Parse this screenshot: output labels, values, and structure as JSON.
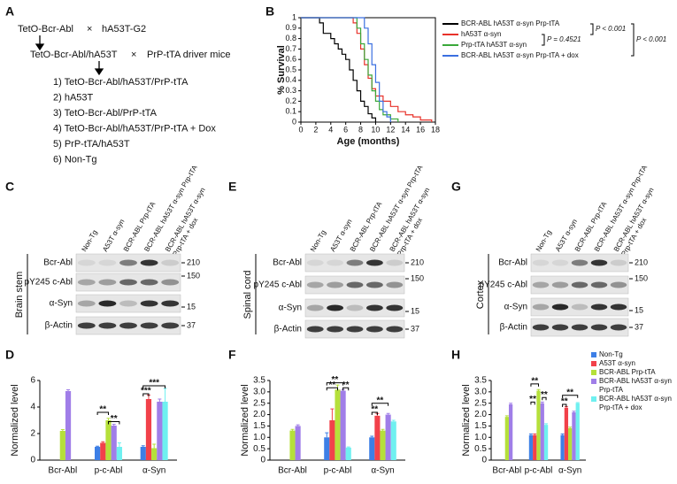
{
  "panel_labels": [
    "A",
    "B",
    "C",
    "D",
    "E",
    "F",
    "G",
    "H"
  ],
  "panel_a": {
    "parent1": "TetO-Bcr-Abl",
    "cross1": "×",
    "parent2": "hA53T-G2",
    "offspring": "TetO-Bcr-Abl/hA53T",
    "cross2": "×",
    "parent3": "PrP-tTA driver mice",
    "groups": [
      "1) TetO-Bcr-Abl/hA53T/PrP-tTA",
      "2) hA53T",
      "3) TetO-Bcr-Abl/PrP-tTA",
      "4) TetO-Bcr-Abl/hA53T/PrP-tTA + Dox",
      "5) PrP-tTA/hA53T",
      "6) Non-Tg"
    ]
  },
  "blots": [
    {
      "tissue": "Brain stem",
      "lanes": [
        [
          "Non-Tg"
        ],
        [
          "A53T α-syn"
        ],
        [
          "BCR-ABL Prp-tTA"
        ],
        [
          "BCR-ABL hA53T α-syn Prp-tTA"
        ],
        [
          "BCR-ABL hA53T α-syn",
          "Prp-tTA + dox"
        ]
      ],
      "rows": [
        "Bcr-Abl",
        "pY245 c-Abl",
        "α-Syn",
        "β-Actin"
      ],
      "markers": [
        210,
        150,
        15,
        37
      ]
    },
    {
      "tissue": "Spinal cord",
      "lanes": [
        [
          "Non-Tg"
        ],
        [
          "A53T α-syn"
        ],
        [
          "BCR-ABL Prp-tTA"
        ],
        [
          "BCR-ABL hA53T α-syn Prp-tTA"
        ],
        [
          "BCR-ABL hA53T α-syn",
          "Prp-tTA + dox"
        ]
      ],
      "rows": [
        "Bcr-Abl",
        "pY245 c-Abl",
        "α-Syn",
        "β-Actin"
      ],
      "markers": [
        210,
        150,
        15,
        37
      ]
    },
    {
      "tissue": "Cortex",
      "lanes": [
        [
          "Non-Tg"
        ],
        [
          "A53T α-syn"
        ],
        [
          "BCR-ABL Prp-tTA"
        ],
        [
          "BCR-ABL hA53T α-syn Prp-tTA"
        ],
        [
          "BCR-ABL hA53T α-syn",
          "Prp-tTA + dox"
        ]
      ],
      "rows": [
        "Bcr-Abl",
        "pY245 c-Abl",
        "α-Syn",
        "β-Actin"
      ],
      "markers": [
        210,
        150,
        15,
        37
      ]
    }
  ],
  "chart_data": [
    {
      "type": "line",
      "step": true,
      "ylabel": "% Survival",
      "xlabel": "Age (months)",
      "xlim": [
        0,
        18
      ],
      "ylim": [
        0,
        1
      ],
      "xticks": [
        0,
        2,
        4,
        6,
        8,
        10,
        12,
        14,
        16,
        18
      ],
      "yticks": [
        0,
        0.1,
        0.2,
        0.3,
        0.4,
        0.5,
        0.6,
        0.7,
        0.8,
        0.9,
        1
      ],
      "series": [
        {
          "name": "BCR-ABL hA53T α-syn Prp-tTA",
          "color": "#000000",
          "x": [
            0,
            2.5,
            3,
            4,
            4.5,
            5,
            5.5,
            6,
            6.5,
            7,
            7.5,
            8,
            8.5,
            9,
            9.5,
            10
          ],
          "values": [
            1,
            0.95,
            0.85,
            0.8,
            0.75,
            0.7,
            0.65,
            0.6,
            0.5,
            0.4,
            0.3,
            0.2,
            0.15,
            0.08,
            0.04,
            0
          ]
        },
        {
          "name": "hA53T α-syn",
          "color": "#e8322a",
          "x": [
            0,
            7,
            7.5,
            8,
            8.5,
            9,
            9.5,
            10,
            11,
            12,
            13,
            14,
            15,
            16,
            17.5
          ],
          "values": [
            1,
            0.95,
            0.85,
            0.7,
            0.55,
            0.42,
            0.32,
            0.25,
            0.2,
            0.15,
            0.1,
            0.07,
            0.05,
            0.02,
            0
          ]
        },
        {
          "name": "Prp-tTA hA53T α-syn",
          "color": "#3aa83a",
          "x": [
            0,
            7.5,
            8,
            8.5,
            9,
            9.5,
            10,
            10.5,
            11,
            12,
            13
          ],
          "values": [
            1,
            0.9,
            0.75,
            0.6,
            0.45,
            0.3,
            0.2,
            0.12,
            0.07,
            0.03,
            0
          ]
        },
        {
          "name": "BCR-ABL hA53T α-syn Prp-tTA + dox",
          "color": "#3a6fe0",
          "x": [
            0,
            8.5,
            9,
            9.5,
            10,
            10.5,
            11,
            11.5,
            12
          ],
          "values": [
            1,
            0.9,
            0.75,
            0.55,
            0.38,
            0.2,
            0.1,
            0.05,
            0
          ]
        }
      ],
      "p_values": [
        "P < 0.001",
        "P = 0.4521",
        "P < 0.001"
      ]
    },
    {
      "type": "bar",
      "ylabel": "Normalized level",
      "categories": [
        "Bcr-Abl",
        "p-c-Abl",
        "α-Syn"
      ],
      "ylim": [
        0,
        6
      ],
      "yticks": [
        0,
        2,
        4,
        6
      ],
      "series": [
        {
          "color": "#3d7fe6",
          "values": [
            null,
            1.0,
            1.0
          ],
          "errors": [
            null,
            0.05,
            0.08
          ]
        },
        {
          "color": "#f2414a",
          "values": [
            null,
            1.3,
            4.6
          ],
          "errors": [
            null,
            0.08,
            0.3
          ]
        },
        {
          "color": "#b5e03a",
          "values": [
            2.2,
            3.0,
            0.9
          ],
          "errors": [
            0.1,
            0.15,
            0.3
          ]
        },
        {
          "color": "#a07ee8",
          "values": [
            5.2,
            2.6,
            4.4
          ],
          "errors": [
            0.1,
            0.1,
            0.2
          ]
        },
        {
          "color": "#6ff0f0",
          "values": [
            null,
            1.0,
            4.4
          ],
          "errors": [
            null,
            0.3,
            1.0
          ]
        }
      ],
      "annotations": [
        "**",
        "**",
        "***",
        "***"
      ]
    },
    {
      "type": "bar",
      "ylabel": "Normalized level",
      "categories": [
        "Bcr-Abl",
        "p-c-Abl",
        "α-Syn"
      ],
      "ylim": [
        0,
        3.5
      ],
      "yticks": [
        0,
        0.5,
        {
          "value": 1,
          "label": "1.0"
        },
        1.5,
        {
          "value": 2,
          "label": "2.0"
        },
        2.5,
        {
          "value": 3,
          "label": "3.0"
        },
        3.5
      ],
      "series": [
        {
          "color": "#3d7fe6",
          "values": [
            null,
            1.0,
            1.0
          ],
          "errors": [
            null,
            0.2,
            0.05
          ]
        },
        {
          "color": "#f2414a",
          "values": [
            null,
            1.75,
            1.95
          ],
          "errors": [
            null,
            0.5,
            0.1
          ]
        },
        {
          "color": "#b5e03a",
          "values": [
            1.3,
            3.1,
            1.3
          ],
          "errors": [
            0.05,
            0.2,
            0.05
          ]
        },
        {
          "color": "#a07ee8",
          "values": [
            1.5,
            3.05,
            2.0
          ],
          "errors": [
            0.05,
            0.05,
            0.05
          ]
        },
        {
          "color": "#6ff0f0",
          "values": [
            null,
            0.55,
            1.7
          ],
          "errors": [
            null,
            0.03,
            0.05
          ]
        }
      ],
      "annotations": [
        "**",
        "**",
        "**",
        "**",
        "**"
      ]
    },
    {
      "type": "bar",
      "ylabel": "Normalized level",
      "categories": [
        "Bcr-Abl",
        "p-c-Abl",
        "α-Syn"
      ],
      "ylim": [
        0,
        3.5
      ],
      "yticks": [
        0,
        0.5,
        {
          "value": 1,
          "label": "1.0"
        },
        1.5,
        {
          "value": 2,
          "label": "2.0"
        },
        2.5,
        {
          "value": 3,
          "label": "3.0"
        },
        3.5
      ],
      "series": [
        {
          "name": [
            "Non-Tg"
          ],
          "color": "#3d7fe6",
          "values": [
            null,
            1.1,
            1.1
          ],
          "errors": [
            null,
            0.05,
            0.05
          ]
        },
        {
          "name": [
            "A53T α-syn"
          ],
          "color": "#f2414a",
          "values": [
            null,
            1.1,
            2.3
          ],
          "errors": [
            null,
            0.05,
            0.05
          ]
        },
        {
          "name": [
            "BCR-ABL Prp-tTA"
          ],
          "color": "#b5e03a",
          "values": [
            1.9,
            3.05,
            1.4
          ],
          "errors": [
            0.05,
            0.05,
            0.05
          ]
        },
        {
          "name": [
            "BCR-ABL hA53T α-syn",
            "Prp-tTA"
          ],
          "color": "#a07ee8",
          "values": [
            2.45,
            2.5,
            2.1
          ],
          "errors": [
            0.05,
            0.05,
            0.05
          ]
        },
        {
          "name": [
            "BCR-ABL hA53T α-syn",
            "Prp-tTA + dox"
          ],
          "color": "#6ff0f0",
          "values": [
            null,
            1.55,
            2.5
          ],
          "errors": [
            null,
            0.05,
            0.03
          ]
        }
      ],
      "annotations": [
        "**",
        "**",
        "**",
        "**",
        "**"
      ]
    }
  ]
}
